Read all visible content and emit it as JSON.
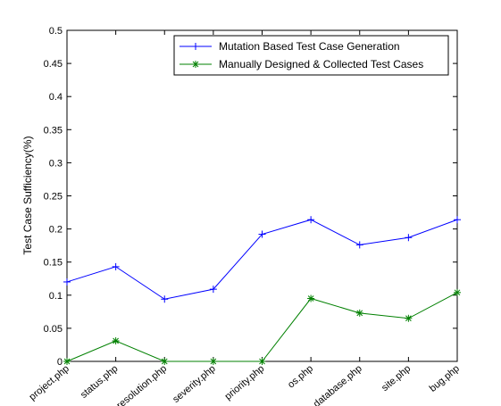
{
  "chart_data": {
    "type": "line",
    "categories": [
      "project.php",
      "status.php",
      "resolution.php",
      "severity.php",
      "priority.php",
      "os.php",
      "database.php",
      "site.php",
      "bug.php"
    ],
    "series": [
      {
        "name": "Mutation Based Test Case Generation",
        "values": [
          0.12,
          0.143,
          0.094,
          0.109,
          0.192,
          0.214,
          0.176,
          0.187,
          0.214
        ],
        "color": "#0000ff",
        "marker": "plus"
      },
      {
        "name": "Manually Designed & Collected Test Cases",
        "values": [
          0.0,
          0.031,
          0.0,
          0.0,
          0.0,
          0.095,
          0.073,
          0.065,
          0.104
        ],
        "color": "#008000",
        "marker": "asterisk"
      }
    ],
    "xlabel": "",
    "ylabel": "Test Case Sufficiency(%)",
    "ylim": [
      0,
      0.5
    ],
    "yticks": [
      "0",
      "0.05",
      "0.1",
      "0.15",
      "0.2",
      "0.25",
      "0.3",
      "0.35",
      "0.4",
      "0.45",
      "0.5"
    ],
    "grid": false,
    "legend_position": "top-right"
  }
}
